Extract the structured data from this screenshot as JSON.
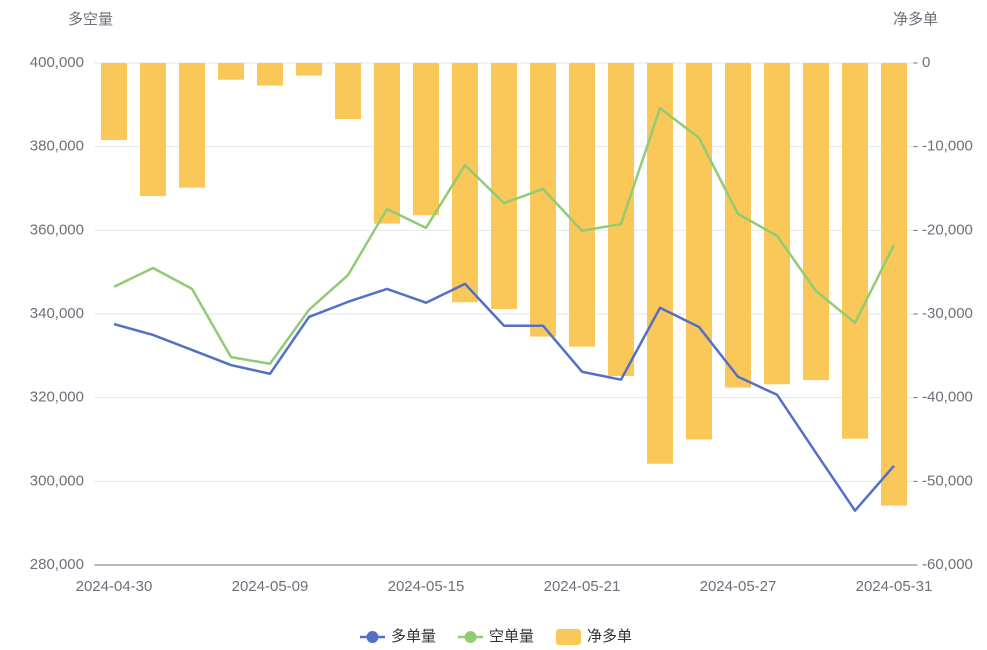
{
  "chart_data": {
    "type": "combo",
    "y_label": "多空量",
    "y2_label": "净多单",
    "categories": [
      "2024-04-30",
      null,
      null,
      null,
      "2024-05-09",
      null,
      null,
      null,
      "2024-05-15",
      null,
      null,
      null,
      "2024-05-21",
      null,
      null,
      null,
      "2024-05-27",
      null,
      null,
      null,
      "2024-05-31"
    ],
    "series": [
      {
        "name": "多单量",
        "type": "line",
        "color": "#5470c6",
        "values": [
          337600,
          335000,
          331400,
          327800,
          325700,
          339300,
          342900,
          346000,
          342700,
          347200,
          337200,
          337200,
          326200,
          324300,
          341500,
          336900,
          325000,
          320700,
          306800,
          293000,
          303700
        ]
      },
      {
        "name": "空单量",
        "type": "line",
        "color": "#91cc75",
        "values": [
          346500,
          351000,
          346000,
          329700,
          328100,
          341000,
          349300,
          365100,
          360600,
          375600,
          366500,
          369900,
          359900,
          361500,
          389200,
          382100,
          363900,
          358700,
          345500,
          337900,
          356500
        ]
      },
      {
        "name": "净多单",
        "type": "bar",
        "axis": "y2",
        "color": "#fac858",
        "values": [
          -9200,
          -15900,
          -14900,
          -2000,
          -2700,
          -1500,
          -6700,
          -19200,
          -18200,
          -28600,
          -29400,
          -32700,
          -33900,
          -37400,
          -47900,
          -45000,
          -38800,
          -38400,
          -37900,
          -44900,
          -52900
        ]
      }
    ],
    "ylim": [
      280000,
      400000
    ],
    "yticks": [
      {
        "value": 280000,
        "label": "280,000"
      },
      {
        "value": 300000,
        "label": "300,000"
      },
      {
        "value": 320000,
        "label": "320,000"
      },
      {
        "value": 340000,
        "label": "340,000"
      },
      {
        "value": 360000,
        "label": "360,000"
      },
      {
        "value": 380000,
        "label": "380,000"
      },
      {
        "value": 400000,
        "label": "400,000"
      }
    ],
    "y2lim": [
      -60000,
      0
    ],
    "y2ticks": [
      {
        "value": -60000,
        "label": "-60,000"
      },
      {
        "value": -50000,
        "label": "-50,000"
      },
      {
        "value": -40000,
        "label": "-40,000"
      },
      {
        "value": -30000,
        "label": "-30,000"
      },
      {
        "value": -20000,
        "label": "-20,000"
      },
      {
        "value": -10000,
        "label": "-10,000"
      },
      0
    ],
    "grid": true,
    "legend": "bottom"
  }
}
